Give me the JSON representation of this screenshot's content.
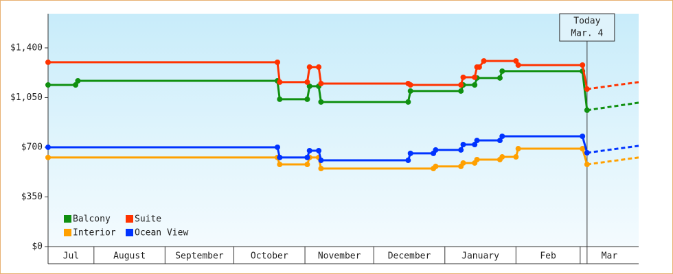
{
  "chart_data": {
    "type": "line",
    "xlim": [
      11,
      268.5
    ],
    "ylim": [
      0,
      1641
    ],
    "yticks": [
      {
        "value": 0,
        "label": "$0"
      },
      {
        "value": 350,
        "label": "$350"
      },
      {
        "value": 700,
        "label": "$700"
      },
      {
        "value": 1050,
        "label": "$1,050"
      },
      {
        "value": 1400,
        "label": "$1,400"
      }
    ],
    "xticks": [
      {
        "value": 11,
        "label": "Jul"
      },
      {
        "value": 31,
        "label": "August"
      },
      {
        "value": 62,
        "label": "September"
      },
      {
        "value": 92,
        "label": "October"
      },
      {
        "value": 123,
        "label": "November"
      },
      {
        "value": 153,
        "label": "December"
      },
      {
        "value": 184,
        "label": "January"
      },
      {
        "value": 215,
        "label": "Feb"
      },
      {
        "value": 243,
        "label": "Mar"
      }
    ],
    "annotation": {
      "x": 246,
      "lines": [
        "Today",
        "Mar. 4"
      ]
    },
    "legend": "bottom-left",
    "series": [
      {
        "name": "Balcony",
        "color": "#109010",
        "x": [
          11,
          23,
          24,
          111,
          112,
          124,
          125,
          129,
          130,
          168,
          169,
          191,
          192,
          197,
          198,
          208,
          209,
          244,
          246,
          268.5
        ],
        "values": [
          1139,
          1139,
          1168,
          1168,
          1038,
          1038,
          1130,
          1130,
          1019,
          1019,
          1096,
          1096,
          1139,
          1139,
          1188,
          1188,
          1236,
          1236,
          961,
          1014
        ]
      },
      {
        "name": "Suite",
        "color": "#ff3300",
        "x": [
          11,
          111,
          112,
          124,
          125,
          129,
          130,
          168,
          169,
          191,
          192,
          197,
          198,
          199,
          201,
          215,
          216,
          244,
          246,
          268.5
        ],
        "values": [
          1299,
          1299,
          1159,
          1159,
          1265,
          1265,
          1149,
          1149,
          1139,
          1139,
          1193,
          1193,
          1265,
          1265,
          1308,
          1308,
          1279,
          1279,
          1110,
          1159
        ]
      },
      {
        "name": "Interior",
        "color": "#ffa000",
        "x": [
          11,
          111,
          112,
          124,
          125,
          129,
          130,
          179,
          180,
          191,
          192,
          197,
          198,
          208,
          209,
          215,
          216,
          244,
          246,
          268.5
        ],
        "values": [
          628,
          628,
          579,
          579,
          628,
          628,
          550,
          550,
          565,
          565,
          589,
          589,
          613,
          613,
          632,
          632,
          690,
          690,
          579,
          628
        ]
      },
      {
        "name": "Ocean View",
        "color": "#0033ff",
        "x": [
          11,
          111,
          112,
          124,
          125,
          129,
          130,
          168,
          169,
          179,
          180,
          191,
          192,
          197,
          198,
          208,
          209,
          244,
          246,
          268.5
        ],
        "values": [
          700,
          700,
          628,
          628,
          676,
          676,
          608,
          608,
          657,
          657,
          681,
          681,
          719,
          719,
          748,
          748,
          777,
          777,
          661,
          710
        ]
      }
    ]
  }
}
